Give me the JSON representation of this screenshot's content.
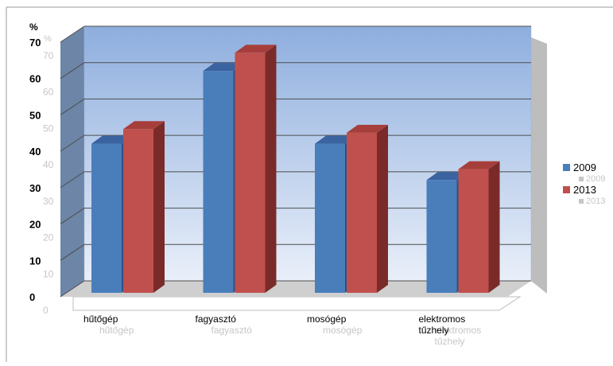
{
  "chart_data": {
    "type": "bar",
    "ylabel": "%",
    "ylim": [
      0,
      70
    ],
    "yticks": [
      0,
      10,
      20,
      30,
      40,
      50,
      60,
      70
    ],
    "categories": [
      "hűtőgép",
      "fagyasztó",
      "mosógép",
      "elektromos tűzhely"
    ],
    "category_label_lines": [
      [
        "hűtőgép"
      ],
      [
        "fagyasztó"
      ],
      [
        "mosógép"
      ],
      [
        "elektromos",
        "tűzhely"
      ]
    ],
    "series": [
      {
        "name": "2009",
        "values": [
          41,
          61,
          41,
          31
        ]
      },
      {
        "name": "2013",
        "values": [
          45,
          66,
          44,
          34
        ]
      }
    ],
    "legend_position": "right",
    "grid": true,
    "colors": {
      "series": [
        "#4a7ebb",
        "#c0504d"
      ],
      "series_top": [
        "#3a63a0",
        "#a63f3c"
      ],
      "series_side": [
        "#2e5089",
        "#7a2b29"
      ],
      "back_wall_top": "#8eaede",
      "back_wall_bottom": "#e9eff9",
      "side_wall": "#6d85a6",
      "floor": "#cfcfcf",
      "gridline": "#4d4d4d"
    }
  }
}
